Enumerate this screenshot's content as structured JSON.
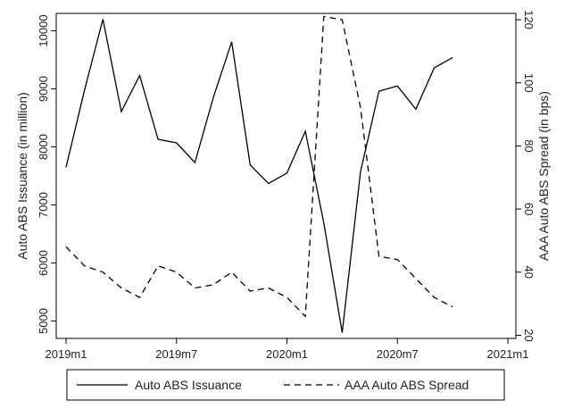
{
  "chart_data": {
    "type": "line",
    "x_axis": {
      "ticks": [
        0,
        6,
        12,
        18,
        24
      ],
      "tick_labels": [
        "2019m1",
        "2019m7",
        "2020m1",
        "2020m7",
        "2021m1"
      ],
      "range": [
        0,
        24
      ]
    },
    "y_left": {
      "label": "Auto ABS Issuance (in million)",
      "ticks": [
        5000,
        6000,
        7000,
        8000,
        9000,
        10000
      ],
      "tick_labels": [
        "5000",
        "6000",
        "7000",
        "8000",
        "9000",
        "10000"
      ],
      "range": [
        4700,
        10300
      ]
    },
    "y_right": {
      "label": "AAA Auto ABS Spread (in bps)",
      "ticks": [
        20,
        40,
        60,
        80,
        100,
        120
      ],
      "tick_labels": [
        "20",
        "40",
        "60",
        "80",
        "100",
        "120"
      ],
      "range": [
        19,
        122
      ]
    },
    "series": [
      {
        "name": "Auto ABS Issuance",
        "axis": "left",
        "style": "solid",
        "x": [
          0,
          1,
          2,
          3,
          4,
          5,
          6,
          7,
          8,
          9,
          10,
          11,
          12,
          13,
          14,
          15,
          16,
          17,
          18,
          19,
          20,
          21
        ],
        "values": [
          7650,
          8970,
          10200,
          8610,
          9230,
          8130,
          8070,
          7730,
          8850,
          9810,
          7690,
          7370,
          7550,
          8270,
          6690,
          4800,
          7580,
          8960,
          9050,
          8650,
          9360,
          9540
        ]
      },
      {
        "name": "AAA Auto ABS Spread",
        "axis": "right",
        "style": "dashed",
        "x": [
          0,
          1,
          2,
          3,
          4,
          5,
          6,
          7,
          8,
          9,
          10,
          11,
          12,
          13,
          14,
          15,
          16,
          17,
          18,
          19,
          20,
          21
        ],
        "values": [
          48,
          42,
          40,
          35,
          32,
          42,
          40,
          35,
          36,
          40,
          34,
          35,
          32,
          26,
          121,
          120,
          92,
          45,
          44,
          38,
          32,
          29
        ]
      }
    ],
    "legend": {
      "position": "bottom",
      "entries": [
        "Auto ABS Issuance",
        "AAA Auto ABS Spread"
      ]
    }
  }
}
